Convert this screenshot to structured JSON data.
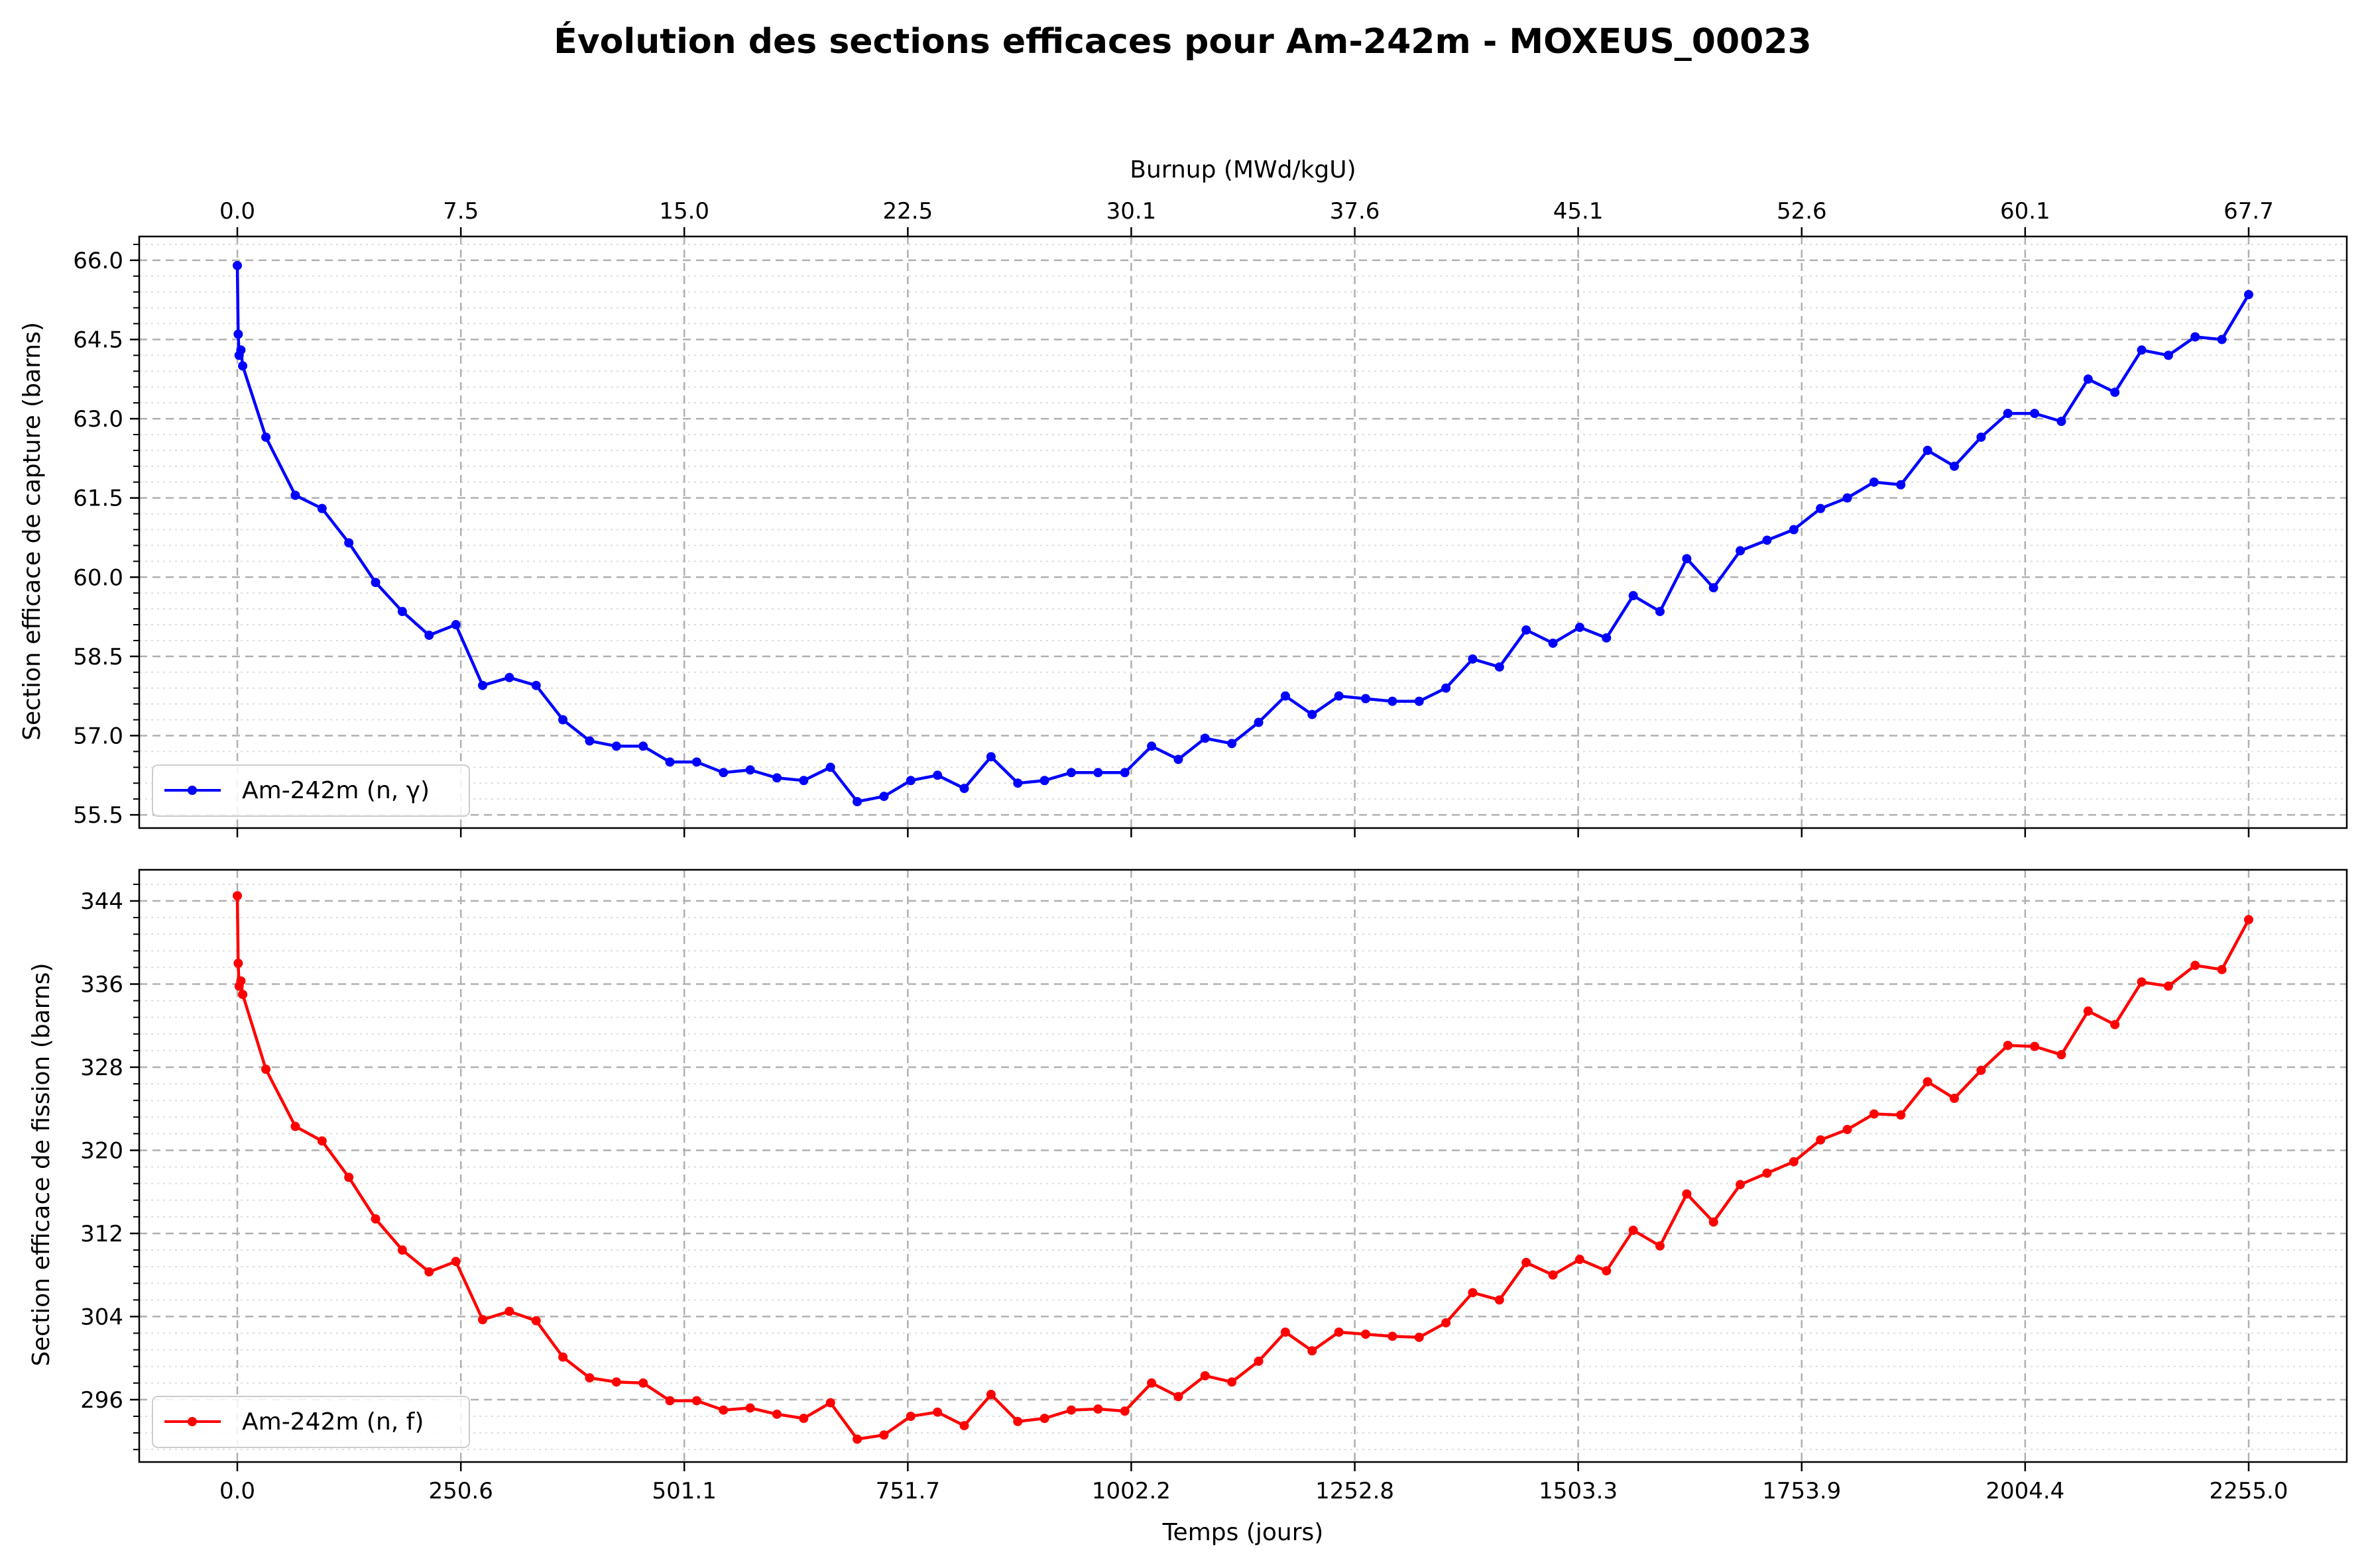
{
  "figure": {
    "title": "Évolution des sections efficaces pour Am-242m - MOXEUS_00023"
  },
  "chart_data": [
    {
      "type": "line",
      "panel": "top",
      "xlabel": "",
      "ylabel": "Section efficace de capture (barns)",
      "top_xlabel": "Burnup (MWd/kgU)",
      "x_ticks": [
        "0.0",
        "250.6",
        "501.1",
        "751.7",
        "1002.2",
        "1252.8",
        "1503.3",
        "1753.9",
        "2004.4",
        "2255.0"
      ],
      "top_x_ticks": [
        "0.0",
        "7.5",
        "15.0",
        "22.5",
        "30.1",
        "37.6",
        "45.1",
        "52.6",
        "60.1",
        "67.7"
      ],
      "y_ticks": [
        "55.5",
        "57.0",
        "58.5",
        "60.0",
        "61.5",
        "63.0",
        "64.5",
        "66.0"
      ],
      "xlim": [
        -110,
        2365
      ],
      "ylim": [
        55.25,
        66.45
      ],
      "grid": true,
      "legend_position": "lower left",
      "series": [
        {
          "name": "Am-242m (n, γ)",
          "color": "#0000ff",
          "x": [
            0,
            1,
            2,
            4,
            6,
            32,
            65,
            95,
            125,
            155,
            185,
            215,
            245,
            275,
            305,
            335,
            365,
            395,
            425,
            455,
            485,
            515,
            545,
            575,
            605,
            635,
            665,
            695,
            725,
            755,
            785,
            815,
            845,
            875,
            905,
            935,
            965,
            995,
            1025,
            1055,
            1085,
            1115,
            1145,
            1175,
            1205,
            1235,
            1265,
            1295,
            1325,
            1355,
            1385,
            1415,
            1445,
            1475,
            1505,
            1535,
            1565,
            1595,
            1625,
            1655,
            1685,
            1715,
            1745,
            1775,
            1805,
            1835,
            1865,
            1895,
            1925,
            1955,
            1985,
            2015,
            2045,
            2075,
            2105,
            2135,
            2165,
            2195,
            2225,
            2255
          ],
          "y": [
            65.9,
            64.6,
            64.2,
            64.3,
            64.0,
            62.65,
            61.55,
            61.3,
            60.65,
            59.9,
            59.35,
            58.9,
            59.1,
            57.95,
            58.1,
            57.95,
            57.3,
            56.9,
            56.8,
            56.8,
            56.5,
            56.5,
            56.3,
            56.35,
            56.2,
            56.15,
            56.4,
            55.75,
            55.85,
            56.15,
            56.25,
            56.0,
            56.6,
            56.1,
            56.15,
            56.3,
            56.3,
            56.3,
            56.8,
            56.55,
            56.95,
            56.85,
            57.25,
            57.75,
            57.4,
            57.75,
            57.7,
            57.65,
            57.65,
            57.9,
            58.45,
            58.3,
            59.0,
            58.75,
            59.05,
            58.85,
            59.65,
            59.35,
            60.35,
            59.8,
            60.5,
            60.7,
            60.9,
            61.3,
            61.5,
            61.8,
            61.75,
            62.4,
            62.1,
            62.65,
            63.1,
            63.1,
            62.95,
            63.75,
            63.5,
            64.3,
            64.2,
            64.55,
            64.5,
            65.35
          ]
        }
      ]
    },
    {
      "type": "line",
      "panel": "bottom",
      "xlabel": "Temps (jours)",
      "ylabel": "Section efficace de fission (barns)",
      "x_ticks": [
        "0.0",
        "250.6",
        "501.1",
        "751.7",
        "1002.2",
        "1252.8",
        "1503.3",
        "1753.9",
        "2004.4",
        "2255.0"
      ],
      "y_ticks": [
        "296",
        "304",
        "312",
        "320",
        "328",
        "336",
        "344"
      ],
      "xlim": [
        -110,
        2365
      ],
      "ylim": [
        290.0,
        347.0
      ],
      "grid": true,
      "legend_position": "lower left",
      "series": [
        {
          "name": "Am-242m (n, f)",
          "color": "#ff0000",
          "x": [
            0,
            1,
            2,
            4,
            6,
            32,
            65,
            95,
            125,
            155,
            185,
            215,
            245,
            275,
            305,
            335,
            365,
            395,
            425,
            455,
            485,
            515,
            545,
            575,
            605,
            635,
            665,
            695,
            725,
            755,
            785,
            815,
            845,
            875,
            905,
            935,
            965,
            995,
            1025,
            1055,
            1085,
            1115,
            1145,
            1175,
            1205,
            1235,
            1265,
            1295,
            1325,
            1355,
            1385,
            1415,
            1445,
            1475,
            1505,
            1535,
            1565,
            1595,
            1625,
            1655,
            1685,
            1715,
            1745,
            1775,
            1805,
            1835,
            1865,
            1895,
            1925,
            1955,
            1985,
            2015,
            2045,
            2075,
            2105,
            2135,
            2165,
            2195,
            2225,
            2255
          ],
          "y": [
            344.5,
            338.0,
            335.8,
            336.3,
            335.0,
            327.8,
            322.3,
            320.9,
            317.4,
            313.4,
            310.4,
            308.3,
            309.3,
            303.7,
            304.5,
            303.6,
            300.1,
            298.1,
            297.7,
            297.6,
            295.9,
            295.9,
            295.0,
            295.2,
            294.6,
            294.2,
            295.7,
            292.2,
            292.6,
            294.4,
            294.8,
            293.5,
            296.5,
            293.9,
            294.2,
            295.0,
            295.1,
            294.9,
            297.6,
            296.3,
            298.3,
            297.7,
            299.7,
            302.5,
            300.7,
            302.5,
            302.3,
            302.1,
            302.0,
            303.4,
            306.3,
            305.6,
            309.2,
            308.0,
            309.5,
            308.4,
            312.3,
            310.8,
            315.8,
            313.1,
            316.7,
            317.8,
            318.9,
            321.0,
            322.0,
            323.5,
            323.4,
            326.6,
            325.0,
            327.7,
            330.1,
            330.0,
            329.2,
            333.4,
            332.1,
            336.2,
            335.8,
            337.8,
            337.4,
            342.2
          ]
        }
      ]
    }
  ]
}
